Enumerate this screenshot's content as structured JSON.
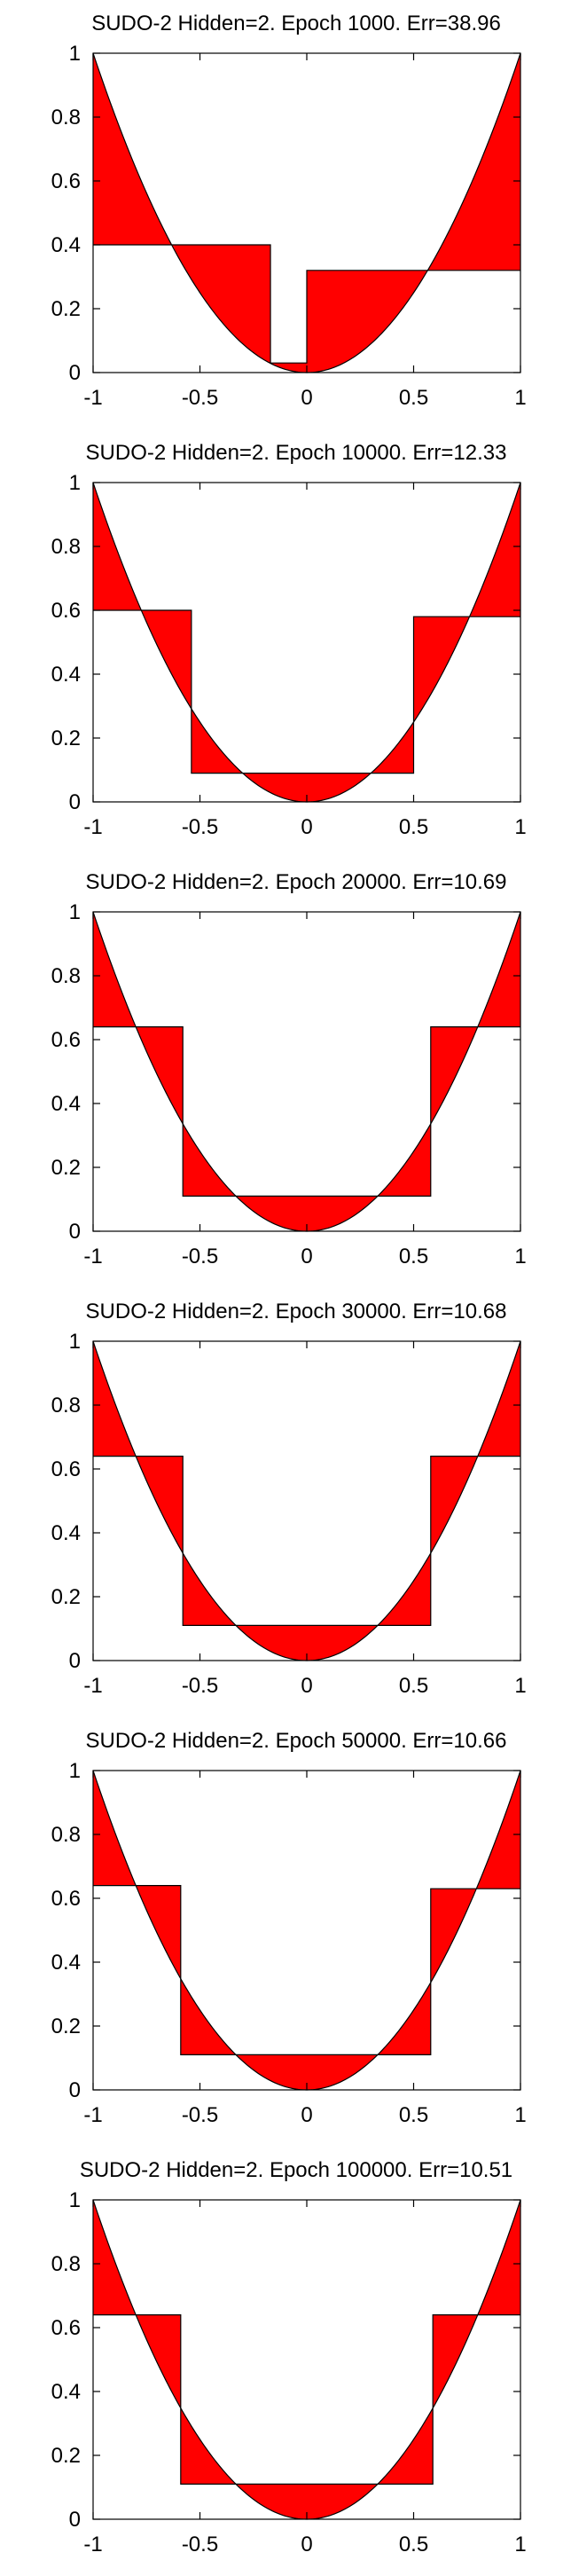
{
  "chart_data": [
    {
      "type": "area",
      "title": "SUDO-2 Hidden=2. Epoch 1000. Err=38.96",
      "xlim": [
        -1,
        1
      ],
      "ylim": [
        0,
        1
      ],
      "xticks": [
        "-1",
        "-0.5",
        "0",
        "0.5",
        "1"
      ],
      "yticks": [
        "0",
        "0.2",
        "0.4",
        "0.6",
        "0.8",
        "1"
      ],
      "target_curve": "y = x^2",
      "steps": [
        {
          "x_start": -1,
          "x_end": -0.62,
          "y": 0.4
        },
        {
          "x_start": -0.62,
          "x_end": -0.17,
          "y": 0.4
        },
        {
          "x_start": -0.17,
          "x_end": 0.0,
          "y": 0.03
        },
        {
          "x_start": 0.0,
          "x_end": 0.57,
          "y": 0.32
        },
        {
          "x_start": 0.57,
          "x_end": 1,
          "y": 0.32
        }
      ],
      "fill_color": "#ff0000"
    },
    {
      "type": "area",
      "title": "SUDO-2 Hidden=2. Epoch 10000. Err=12.33",
      "xlim": [
        -1,
        1
      ],
      "ylim": [
        0,
        1
      ],
      "xticks": [
        "-1",
        "-0.5",
        "0",
        "0.5",
        "1"
      ],
      "yticks": [
        "0",
        "0.2",
        "0.4",
        "0.6",
        "0.8",
        "1"
      ],
      "target_curve": "y = x^2",
      "steps": [
        {
          "x_start": -1,
          "x_end": -0.54,
          "y": 0.6
        },
        {
          "x_start": -0.54,
          "x_end": 0.5,
          "y": 0.09
        },
        {
          "x_start": 0.5,
          "x_end": 1,
          "y": 0.58
        }
      ],
      "fill_color": "#ff0000"
    },
    {
      "type": "area",
      "title": "SUDO-2 Hidden=2. Epoch 20000. Err=10.69",
      "xlim": [
        -1,
        1
      ],
      "ylim": [
        0,
        1
      ],
      "xticks": [
        "-1",
        "-0.5",
        "0",
        "0.5",
        "1"
      ],
      "yticks": [
        "0",
        "0.2",
        "0.4",
        "0.6",
        "0.8",
        "1"
      ],
      "target_curve": "y = x^2",
      "steps": [
        {
          "x_start": -1,
          "x_end": -0.58,
          "y": 0.64
        },
        {
          "x_start": -0.58,
          "x_end": 0.58,
          "y": 0.11
        },
        {
          "x_start": 0.58,
          "x_end": 1,
          "y": 0.64
        }
      ],
      "fill_color": "#ff0000"
    },
    {
      "type": "area",
      "title": "SUDO-2 Hidden=2. Epoch 30000. Err=10.68",
      "xlim": [
        -1,
        1
      ],
      "ylim": [
        0,
        1
      ],
      "xticks": [
        "-1",
        "-0.5",
        "0",
        "0.5",
        "1"
      ],
      "yticks": [
        "0",
        "0.2",
        "0.4",
        "0.6",
        "0.8",
        "1"
      ],
      "target_curve": "y = x^2",
      "steps": [
        {
          "x_start": -1,
          "x_end": -0.58,
          "y": 0.64
        },
        {
          "x_start": -0.58,
          "x_end": 0.58,
          "y": 0.11
        },
        {
          "x_start": 0.58,
          "x_end": 1,
          "y": 0.64
        }
      ],
      "fill_color": "#ff0000"
    },
    {
      "type": "area",
      "title": "SUDO-2 Hidden=2. Epoch 50000. Err=10.66",
      "xlim": [
        -1,
        1
      ],
      "ylim": [
        0,
        1
      ],
      "xticks": [
        "-1",
        "-0.5",
        "0",
        "0.5",
        "1"
      ],
      "yticks": [
        "0",
        "0.2",
        "0.4",
        "0.6",
        "0.8",
        "1"
      ],
      "target_curve": "y = x^2",
      "steps": [
        {
          "x_start": -1,
          "x_end": -0.59,
          "y": 0.64
        },
        {
          "x_start": -0.59,
          "x_end": 0.58,
          "y": 0.11
        },
        {
          "x_start": 0.58,
          "x_end": 1,
          "y": 0.63
        }
      ],
      "fill_color": "#ff0000"
    },
    {
      "type": "area",
      "title": "SUDO-2 Hidden=2. Epoch 100000. Err=10.51",
      "xlim": [
        -1,
        1
      ],
      "ylim": [
        0,
        1
      ],
      "xticks": [
        "-1",
        "-0.5",
        "0",
        "0.5",
        "1"
      ],
      "yticks": [
        "0",
        "0.2",
        "0.4",
        "0.6",
        "0.8",
        "1"
      ],
      "target_curve": "y = x^2",
      "steps": [
        {
          "x_start": -1,
          "x_end": -0.59,
          "y": 0.64
        },
        {
          "x_start": -0.59,
          "x_end": 0.59,
          "y": 0.11
        },
        {
          "x_start": 0.59,
          "x_end": 1,
          "y": 0.64
        }
      ],
      "fill_color": "#ff0000"
    }
  ]
}
